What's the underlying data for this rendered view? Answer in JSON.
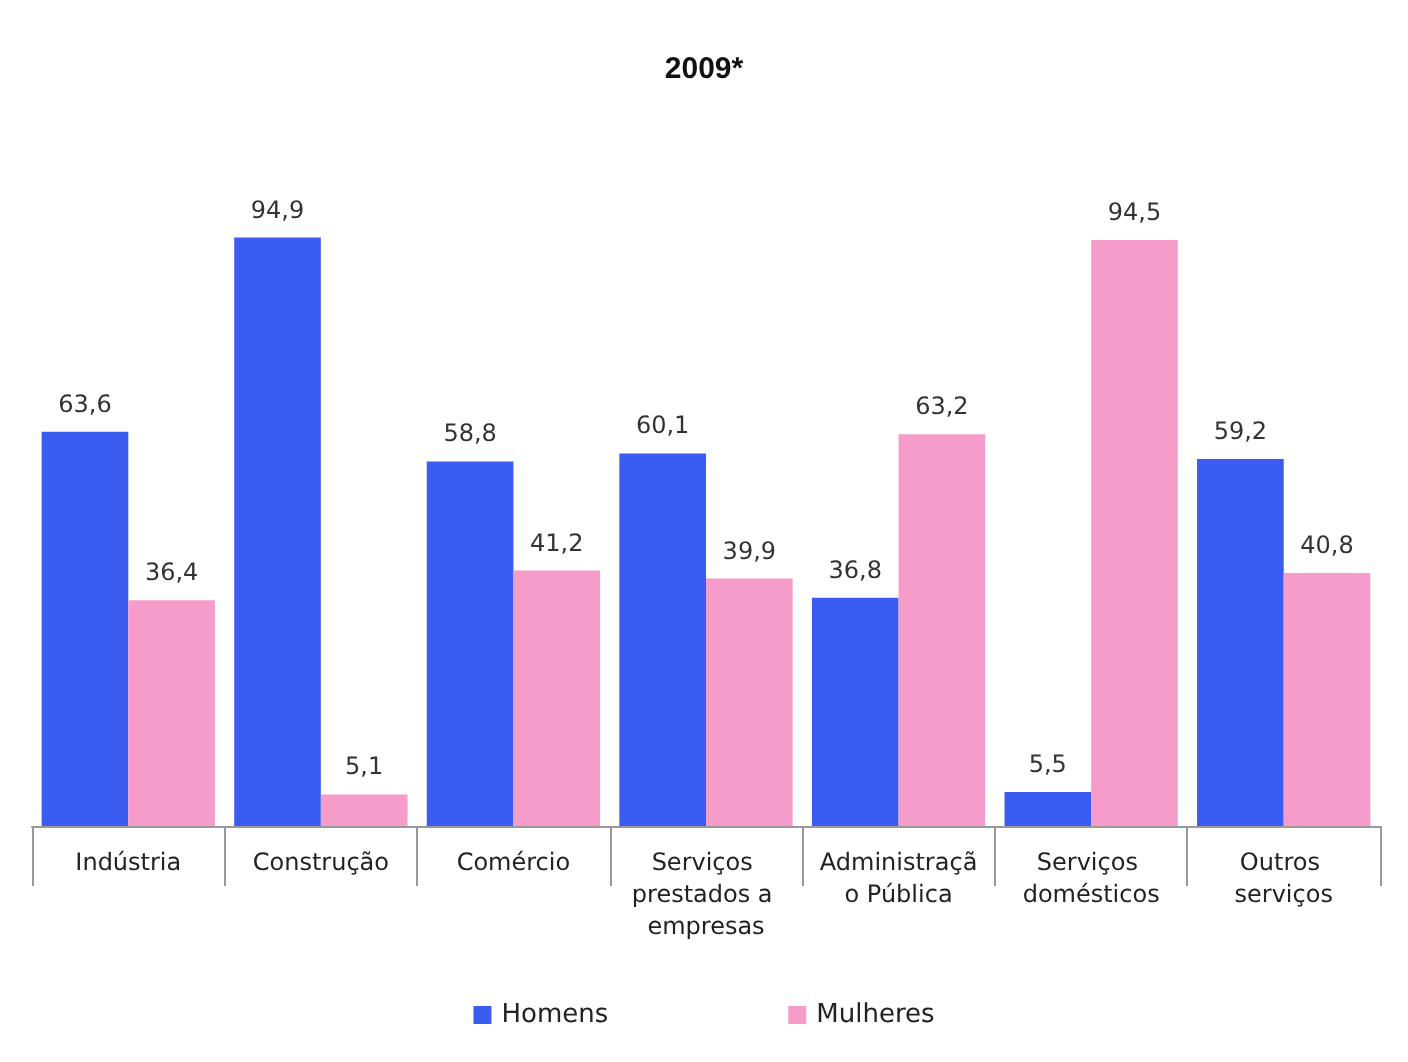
{
  "chart_data": {
    "type": "bar",
    "title": "2009*",
    "categories": [
      "Indústria",
      "Construção",
      "Comércio",
      "Serviços prestados a empresas",
      "Administração Pública",
      "Serviços domésticos",
      "Outros serviços"
    ],
    "series": [
      {
        "name": "Homens",
        "color": "#3b5cf0",
        "values": [
          63.6,
          94.9,
          58.8,
          60.1,
          36.8,
          5.5,
          59.2
        ],
        "value_labels": [
          "63,6",
          "94,9",
          "58,8",
          "60,1",
          "36,8",
          "5,5",
          "59,2"
        ]
      },
      {
        "name": "Mulheres",
        "color": "#f59ccb",
        "values": [
          36.4,
          5.1,
          41.2,
          39.9,
          63.2,
          94.5,
          40.8
        ],
        "value_labels": [
          "36,4",
          "5,1",
          "41,2",
          "39,9",
          "63,2",
          "94,5",
          "40,8"
        ]
      }
    ],
    "legend": "bottom",
    "grid": false
  }
}
